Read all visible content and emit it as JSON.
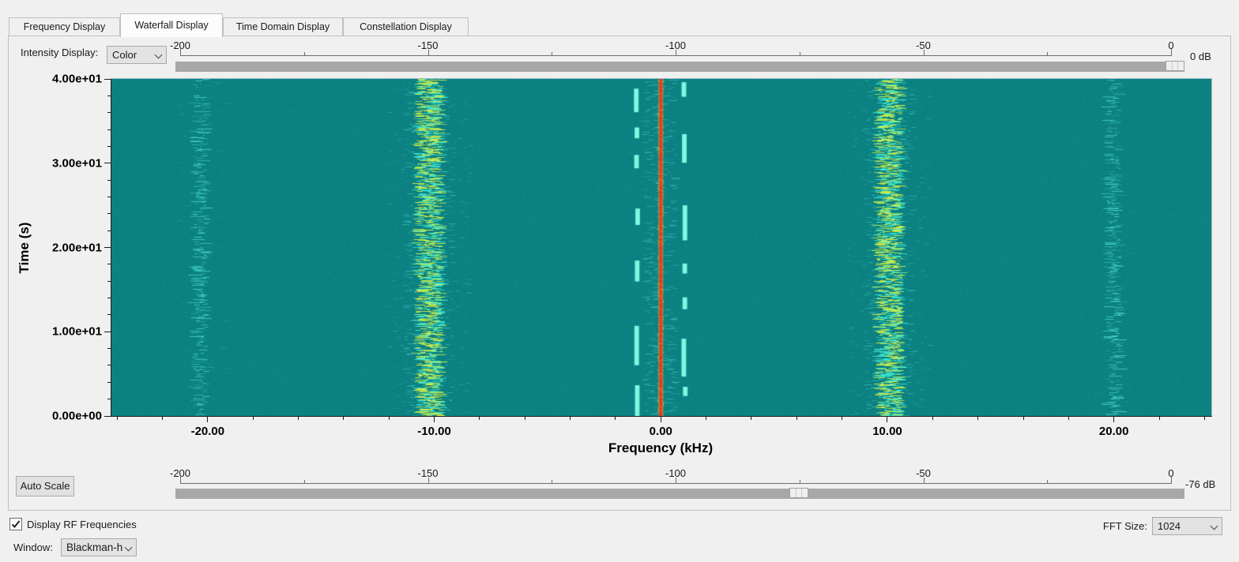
{
  "tabs": {
    "items": [
      {
        "label": "Frequency Display",
        "active": false
      },
      {
        "label": "Waterfall Display",
        "active": true
      },
      {
        "label": "Time Domain Display",
        "active": false
      },
      {
        "label": "Constellation Display",
        "active": false
      }
    ]
  },
  "intensity_display": {
    "label": "Intensity Display:",
    "value": "Color"
  },
  "top_intensity_slider": {
    "min": -200,
    "max": 0,
    "major_step": 50,
    "minor_step": 25,
    "tick_labels": [
      "-200",
      "-150",
      "-100",
      "-50",
      "0"
    ],
    "value": 0,
    "value_label": "0 dB"
  },
  "bottom_intensity_slider": {
    "min": -200,
    "max": 0,
    "major_step": 50,
    "minor_step": 25,
    "tick_labels": [
      "-200",
      "-150",
      "-100",
      "-50",
      "0"
    ],
    "value": -76,
    "value_label": "-76 dB"
  },
  "auto_scale_button": {
    "label": "Auto Scale"
  },
  "display_rf_checkbox": {
    "label": "Display RF Frequencies",
    "checked": true
  },
  "fft_size": {
    "label": "FFT Size:",
    "value": "1024"
  },
  "window_fn": {
    "label": "Window:",
    "value": "Blackman-h"
  },
  "chart_data": {
    "type": "heatmap",
    "subtype": "waterfall-spectrogram",
    "xlabel": "Frequency (kHz)",
    "ylabel": "Time (s)",
    "xlim": [
      -24.25,
      24.3
    ],
    "ylim": [
      0,
      40
    ],
    "x_major_ticks": [
      -20,
      -10,
      0,
      10,
      20
    ],
    "x_tick_labels": [
      "-20.00",
      "-10.00",
      "0.00",
      "10.00",
      "20.00"
    ],
    "x_minor_step": 2,
    "y_major_ticks": [
      0,
      10,
      20,
      30,
      40
    ],
    "y_tick_labels": [
      "0.00e+00",
      "1.00e+01",
      "2.00e+01",
      "3.00e+01",
      "4.00e+01"
    ],
    "y_minor_step": 2,
    "colormap": "color",
    "background_color": "#0c8182",
    "palette": {
      "noise_cyan": "#50e4cf",
      "strong_yellow_green": "#d0f04b",
      "peak_red": "#e8391b",
      "peak_edge_orange": "#f89628"
    },
    "intensity_min_db": -76,
    "intensity_max_db": 0,
    "signals": [
      {
        "name": "carrier",
        "center_khz": 0.0,
        "width_khz": 0.2,
        "pattern": "continuous-line",
        "strength": "peak"
      },
      {
        "name": "left-keyed-sideband",
        "center_khz": -1.05,
        "width_khz": 0.25,
        "pattern": "intermittent-dashes",
        "strength": "medium"
      },
      {
        "name": "right-keyed-sideband",
        "center_khz": 1.05,
        "width_khz": 0.25,
        "pattern": "intermittent-dashes",
        "strength": "medium"
      },
      {
        "name": "left-wideband-signal",
        "center_khz": -10.2,
        "width_khz": 1.1,
        "pattern": "dense-speckle",
        "strength": "strong"
      },
      {
        "name": "right-wideband-signal",
        "center_khz": 10.1,
        "width_khz": 1.1,
        "pattern": "dense-speckle",
        "strength": "strong"
      },
      {
        "name": "left-edge-noise",
        "center_khz": -20.3,
        "width_khz": 0.6,
        "pattern": "sparse-dashes",
        "strength": "weak"
      },
      {
        "name": "right-edge-noise",
        "center_khz": 20.0,
        "width_khz": 0.6,
        "pattern": "sparse-dashes",
        "strength": "weak"
      }
    ]
  }
}
